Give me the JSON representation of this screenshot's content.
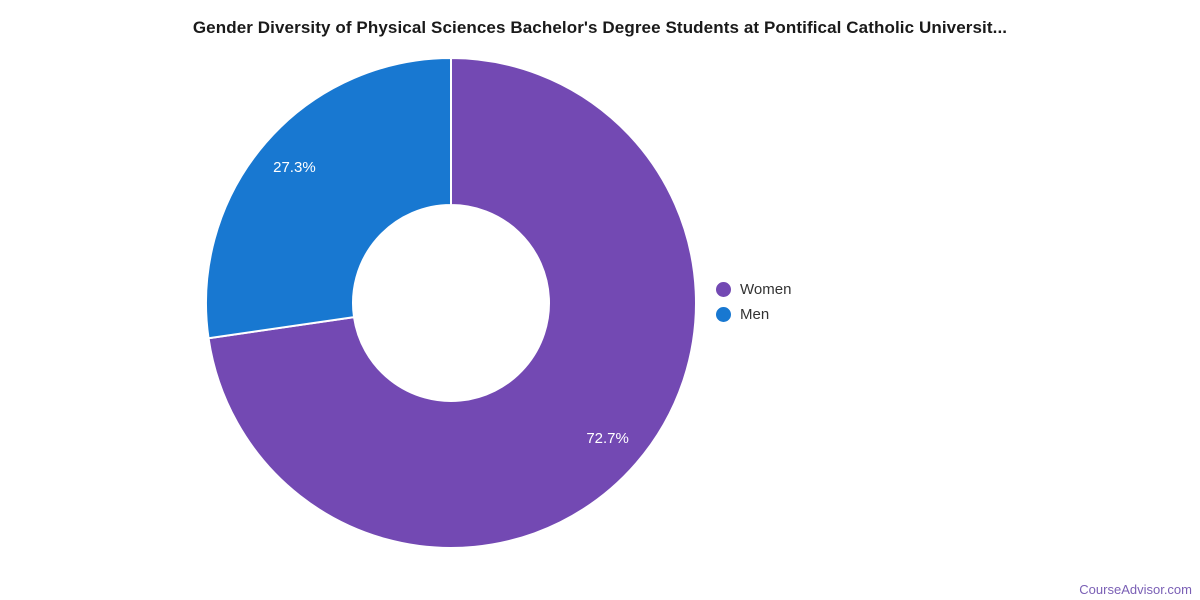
{
  "page": {
    "background": "#ffffff"
  },
  "title": {
    "text": "Gender Diversity of Physical Sciences Bachelor's Degree Students at Pontifical Catholic Universit...",
    "color": "#1a1a1a"
  },
  "chart_data": {
    "type": "pie",
    "subtype": "donut",
    "title": "Gender Diversity of Physical Sciences Bachelor's Degree Students at Pontifical Catholic Universit...",
    "series": [
      {
        "name": "Women",
        "value": 72.7,
        "label": "72.7%",
        "color": "#7349b3"
      },
      {
        "name": "Men",
        "value": 27.3,
        "label": "27.3%",
        "color": "#1878d1"
      }
    ],
    "start_angle_deg": 0,
    "direction": "clockwise",
    "center": {
      "x": 451,
      "y": 303
    },
    "outer_radius": 245,
    "inner_radius": 98,
    "label_radius": 207,
    "label_color": "#ffffff",
    "separator_color": "#ffffff",
    "separator_width": 2,
    "legend": {
      "position": "right",
      "text_color": "#333333"
    }
  },
  "watermark": {
    "text": "CourseAdvisor.com",
    "color": "#7a5fb5"
  }
}
